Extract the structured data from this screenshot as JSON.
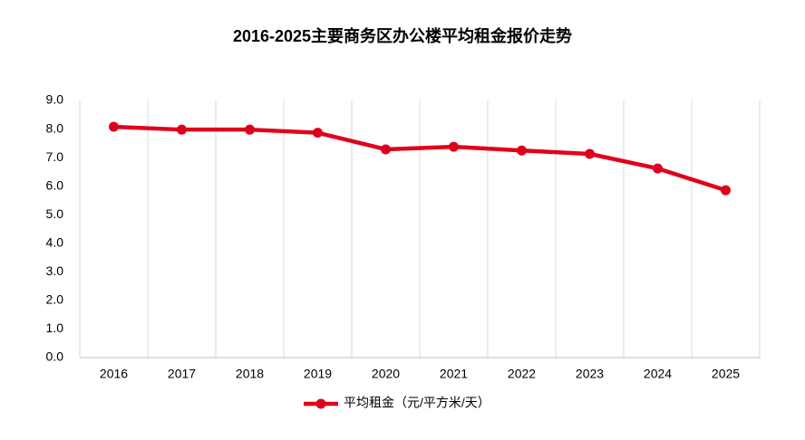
{
  "chart_data": {
    "type": "line",
    "title": "2016-2025主要商务区办公楼平均租金报价走势",
    "categories": [
      "2016",
      "2017",
      "2018",
      "2019",
      "2020",
      "2021",
      "2022",
      "2023",
      "2024",
      "2025"
    ],
    "series": [
      {
        "name": "平均租金（元/平方米/天）",
        "color": "#e0001b",
        "values": [
          8.08,
          7.98,
          7.98,
          7.87,
          7.29,
          7.38,
          7.25,
          7.13,
          6.62,
          5.86
        ]
      }
    ],
    "ylim": [
      0,
      9
    ],
    "yticks": [
      {
        "value": 0,
        "label": "0.0"
      },
      {
        "value": 1,
        "label": "1.0"
      },
      {
        "value": 2,
        "label": "2.0"
      },
      {
        "value": 3,
        "label": "3.0"
      },
      {
        "value": 4,
        "label": "4.0"
      },
      {
        "value": 5,
        "label": "5.0"
      },
      {
        "value": 6,
        "label": "6.0"
      },
      {
        "value": 7,
        "label": "7.0"
      },
      {
        "value": 8,
        "label": "8.0"
      },
      {
        "value": 9,
        "label": "9.0"
      }
    ],
    "grid": true,
    "legend": "bottom"
  }
}
